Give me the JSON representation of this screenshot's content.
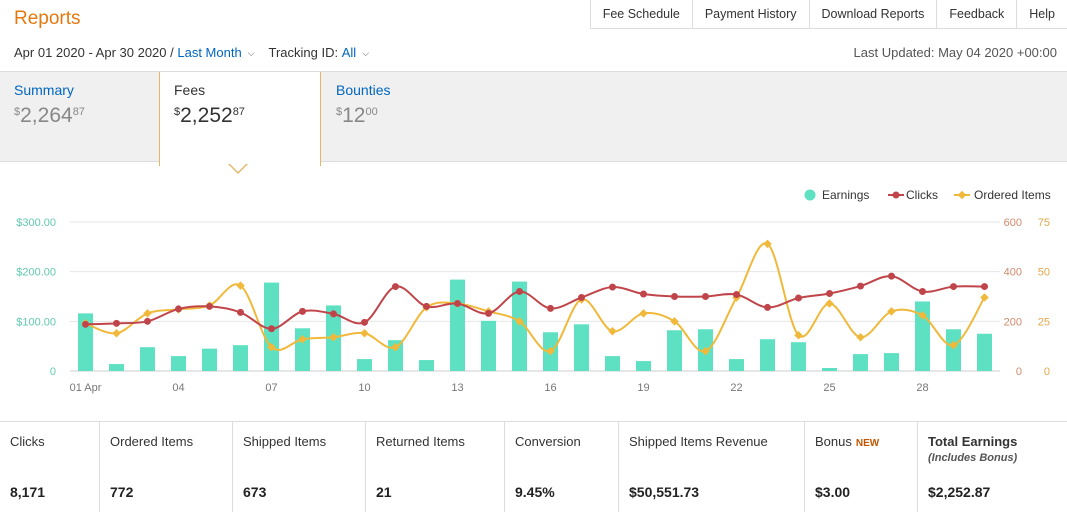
{
  "header": {
    "title": "Reports",
    "nav": [
      "Fee Schedule",
      "Payment History",
      "Download Reports",
      "Feedback",
      "Help"
    ]
  },
  "filters": {
    "date_range": "Apr 01 2020 - Apr 30 2020 /",
    "date_preset": "Last Month",
    "tracking_label": "Tracking ID:",
    "tracking_value": "All",
    "last_updated": "Last Updated: May 04 2020 +00:00"
  },
  "tabs": [
    {
      "label": "Summary",
      "currency": "$",
      "whole": "2,264",
      "cents": "87"
    },
    {
      "label": "Fees",
      "currency": "$",
      "whole": "2,252",
      "cents": "87"
    },
    {
      "label": "Bounties",
      "currency": "$",
      "whole": "12",
      "cents": "00"
    }
  ],
  "chart_data": {
    "type": "bar",
    "legend": [
      "Earnings",
      "Clicks",
      "Ordered Items"
    ],
    "legend_position": "top-right",
    "colors": {
      "earnings": "#5ee0c2",
      "clicks": "#c0454a",
      "ordered": "#f0b93b"
    },
    "x_tick_labels": [
      "01 Apr",
      "04",
      "07",
      "10",
      "13",
      "16",
      "19",
      "22",
      "25",
      "28"
    ],
    "left_axis_ticks": [
      "0",
      "$100.00",
      "$200.00",
      "$300.00"
    ],
    "right_axis_clicks_ticks": [
      "0",
      "200",
      "400",
      "600"
    ],
    "right_axis_items_ticks": [
      "0",
      "25",
      "50",
      "75"
    ],
    "ylim_earnings": [
      0,
      300
    ],
    "ylim_clicks": [
      0,
      600
    ],
    "ylim_items": [
      0,
      75
    ],
    "days": [
      1,
      2,
      3,
      4,
      5,
      6,
      7,
      8,
      9,
      10,
      11,
      12,
      13,
      14,
      15,
      16,
      17,
      18,
      19,
      20,
      21,
      22,
      23,
      24,
      25,
      26,
      27,
      28,
      29,
      30
    ],
    "earnings": [
      116,
      14,
      48,
      30,
      45,
      52,
      178,
      86,
      132,
      24,
      62,
      22,
      184,
      101,
      180,
      78,
      94,
      30,
      20,
      82,
      84,
      24,
      64,
      58,
      6,
      34,
      36,
      140,
      84,
      75
    ],
    "clicks": [
      188,
      192,
      200,
      250,
      260,
      236,
      170,
      240,
      230,
      196,
      340,
      260,
      272,
      232,
      320,
      252,
      296,
      338,
      310,
      300,
      300,
      308,
      256,
      294,
      312,
      342,
      382,
      320,
      340,
      340
    ],
    "ordered_items": [
      24,
      19,
      29,
      31,
      33,
      43,
      12,
      16,
      17,
      19,
      12,
      32,
      34,
      30,
      25,
      10,
      36,
      20,
      29,
      25,
      10,
      37,
      64,
      18,
      34,
      17,
      30,
      28,
      13,
      37
    ]
  },
  "stats": [
    {
      "label": "Clicks",
      "value": "8,171"
    },
    {
      "label": "Ordered Items",
      "value": "772"
    },
    {
      "label": "Shipped Items",
      "value": "673"
    },
    {
      "label": "Returned Items",
      "value": "21"
    },
    {
      "label": "Conversion",
      "value": "9.45%"
    },
    {
      "label": "Shipped Items Revenue",
      "value": "$50,551.73"
    },
    {
      "label": "Bonus",
      "badge": "NEW",
      "value": "$3.00"
    },
    {
      "label": "Total Earnings",
      "sub": "(Includes Bonus)",
      "value": "$2,252.87"
    }
  ]
}
